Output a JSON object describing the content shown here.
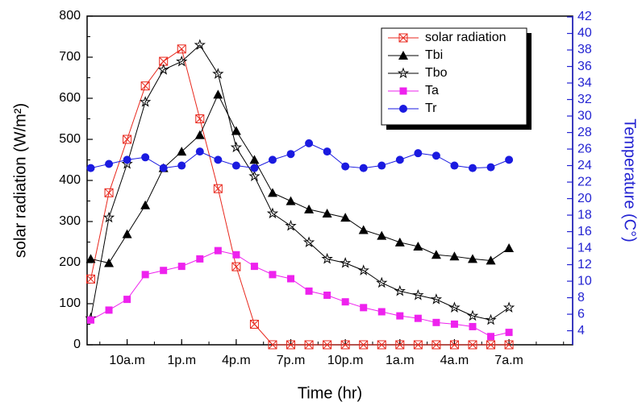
{
  "chart_data": {
    "type": "line",
    "x_label": "Time (hr)",
    "y_label": "solar radiation (W/m²)",
    "y2_label": "Temperature (C°)",
    "x": [
      8,
      9,
      10,
      11,
      12,
      13,
      14,
      15,
      16,
      17,
      18,
      19,
      20,
      21,
      22,
      23,
      24,
      25,
      26,
      27,
      28,
      29,
      30,
      31
    ],
    "xlim": [
      7.8,
      34.5
    ],
    "xticks": [
      {
        "value": 10,
        "label": "10a.m"
      },
      {
        "value": 13,
        "label": "1p.m"
      },
      {
        "value": 16,
        "label": "4p.m"
      },
      {
        "value": 19,
        "label": "7p.m"
      },
      {
        "value": 22,
        "label": "10p.m"
      },
      {
        "value": 25,
        "label": "1a.m"
      },
      {
        "value": 28,
        "label": "4a.m"
      },
      {
        "value": 31,
        "label": "7a.m"
      }
    ],
    "ylim": [
      0,
      800
    ],
    "yticks": [
      0,
      100,
      200,
      300,
      400,
      500,
      600,
      700,
      800
    ],
    "y2lim": [
      2.3,
      42.1
    ],
    "y2ticks": [
      4,
      6,
      8,
      10,
      12,
      14,
      16,
      18,
      20,
      22,
      24,
      26,
      28,
      30,
      32,
      34,
      36,
      38,
      40,
      42
    ],
    "y2_color": "#2323d2",
    "legend": "upper right",
    "series": [
      {
        "name": "solar radiation",
        "color": "#e8271c",
        "marker": "xsquare",
        "axis": "y",
        "values": [
          160,
          370,
          500,
          630,
          690,
          720,
          550,
          380,
          190,
          50,
          0,
          0,
          0,
          0,
          0,
          0,
          0,
          0,
          0,
          0,
          0,
          0,
          0,
          0
        ]
      },
      {
        "name": "Tbi",
        "color": "#000000",
        "marker": "triangle",
        "axis": "y2",
        "values": [
          12.7,
          12.2,
          15.7,
          19.2,
          23.7,
          25.7,
          27.7,
          32.6,
          28.2,
          24.7,
          20.7,
          19.7,
          18.7,
          18.2,
          17.7,
          16.2,
          15.5,
          14.7,
          14.2,
          13.2,
          13.0,
          12.7,
          12.5,
          14.0
        ]
      },
      {
        "name": "Tbo",
        "color": "#000000",
        "marker": "star",
        "axis": "y2",
        "values": [
          5.5,
          17.7,
          24.2,
          31.7,
          35.6,
          36.6,
          38.6,
          35.1,
          26.2,
          22.7,
          18.2,
          16.7,
          14.7,
          12.7,
          12.2,
          11.3,
          9.8,
          8.8,
          8.3,
          7.8,
          6.8,
          5.8,
          5.3,
          6.8
        ]
      },
      {
        "name": "Ta",
        "color": "#ee22ee",
        "marker": "square",
        "axis": "y2",
        "values": [
          5.3,
          6.5,
          7.8,
          10.8,
          11.3,
          11.8,
          12.7,
          13.7,
          13.2,
          11.8,
          10.8,
          10.3,
          8.8,
          8.3,
          7.5,
          6.8,
          6.3,
          5.8,
          5.5,
          5.0,
          4.8,
          4.5,
          3.3,
          3.8
        ]
      },
      {
        "name": "Tr",
        "color": "#1a1ae0",
        "marker": "circle",
        "axis": "y2",
        "values": [
          23.7,
          24.2,
          24.7,
          25.0,
          23.7,
          24.0,
          25.7,
          24.7,
          24.0,
          23.7,
          24.7,
          25.4,
          26.7,
          25.7,
          23.9,
          23.7,
          24.0,
          24.7,
          25.5,
          25.2,
          24.0,
          23.7,
          23.8,
          24.7
        ]
      }
    ]
  }
}
